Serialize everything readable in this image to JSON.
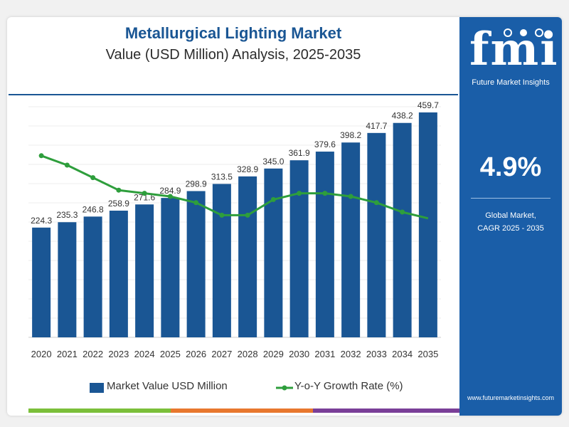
{
  "header": {
    "title": "Metallurgical Lighting Market",
    "subtitle": "Value (USD Million) Analysis, 2025-2035"
  },
  "side_panel": {
    "brand": "Future Market Insights",
    "logo_text": "fmi",
    "cagr_value": "4.9%",
    "cagr_label_line1": "Global Market,",
    "cagr_label_line2": "CAGR 2025 - 2035",
    "website": "www.futuremarketinsights.com"
  },
  "legend": {
    "bar_label": "Market Value USD Million",
    "line_label": "Y-o-Y Growth Rate (%)"
  },
  "colors": {
    "bar": "#1a5694",
    "line": "#2e9e3c",
    "panel": "#1a5ea8",
    "title": "#1a5694",
    "stripe_green": "#7bbf3a",
    "stripe_orange": "#e8772e",
    "stripe_purple": "#7a3f98"
  },
  "chart_data": {
    "type": "bar",
    "title": "Metallurgical Lighting Market",
    "subtitle": "Value (USD Million) Analysis, 2025-2035",
    "categories": [
      "2020",
      "2021",
      "2022",
      "2023",
      "2024",
      "2025",
      "2026",
      "2027",
      "2028",
      "2029",
      "2030",
      "2031",
      "2032",
      "2033",
      "2034",
      "2035"
    ],
    "series": [
      {
        "name": "Market Value USD Million",
        "type": "bar",
        "values": [
          224.3,
          235.3,
          246.8,
          258.9,
          271.6,
          284.9,
          298.9,
          313.5,
          328.9,
          345.0,
          361.9,
          379.6,
          398.2,
          417.7,
          438.2,
          459.7
        ],
        "labels": [
          "224.3",
          "235.3",
          "246.8",
          "258.9",
          "271.6",
          "284.9",
          "298.9",
          "313.5",
          "328.9",
          "345.0",
          "361.9",
          "379.6",
          "398.2",
          "417.7",
          "438.2",
          "459.7"
        ]
      },
      {
        "name": "Y-o-Y Growth Rate (%)",
        "type": "line",
        "values": [
          5.8,
          5.5,
          5.1,
          4.7,
          4.6,
          4.5,
          4.3,
          3.9,
          3.9,
          4.4,
          4.6,
          4.6,
          4.5,
          4.3,
          4.0,
          3.8
        ]
      }
    ],
    "ylim": [
      0,
      480
    ],
    "line_ylim": [
      0,
      7.5
    ],
    "grid": true,
    "legend": "bottom"
  }
}
